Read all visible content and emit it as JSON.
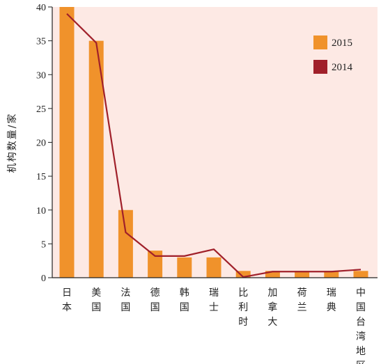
{
  "chart_data": {
    "type": "bar",
    "categories": [
      "日本",
      "美国",
      "法国",
      "德国",
      "韩国",
      "瑞士",
      "比利时",
      "加拿大",
      "荷兰",
      "瑞典",
      "中国台湾地区"
    ],
    "series": [
      {
        "name": "2015",
        "type": "bar",
        "values": [
          40,
          35,
          10,
          4,
          3,
          3,
          1,
          1,
          1,
          1,
          1
        ],
        "color": "#f0922b"
      },
      {
        "name": "2014",
        "type": "line",
        "values": [
          39,
          34.7,
          6.7,
          3.2,
          3.2,
          4.2,
          0.1,
          0.9,
          0.9,
          0.9,
          1.2
        ],
        "color": "#a0202a"
      }
    ],
    "title": "",
    "xlabel": "",
    "ylabel": "机构数量/家",
    "ylim": [
      0,
      40
    ],
    "yticks": [
      0,
      5,
      10,
      15,
      20,
      25,
      30,
      35,
      40
    ],
    "legend_position": "top-right",
    "background_color": "#fde9e4",
    "axis_color": "#222222"
  }
}
